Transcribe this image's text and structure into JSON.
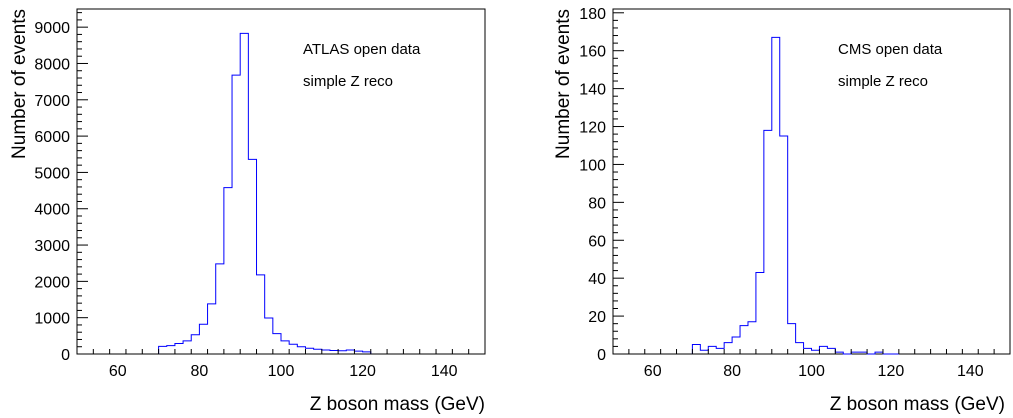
{
  "colors": {
    "histogram": "#0000ff",
    "axes": "#000000",
    "background": "#ffffff"
  },
  "chart_data": [
    {
      "type": "histogram",
      "xlabel": "Z boson mass (GeV)",
      "ylabel": "Number of events",
      "annotations": [
        "ATLAS open data",
        "simple Z reco"
      ],
      "xlim": [
        50,
        150
      ],
      "ylim": [
        0,
        9500
      ],
      "xticks": [
        60,
        80,
        100,
        120,
        140
      ],
      "yticks": [
        0,
        1000,
        2000,
        3000,
        4000,
        5000,
        6000,
        7000,
        8000,
        9000
      ],
      "ytick_labels": [
        "0",
        "1000",
        "2000",
        "3000",
        "4000",
        "5000",
        "6000",
        "7000",
        "8000",
        "9000"
      ],
      "bin_width": 2,
      "bin_edges_start": 70,
      "values": [
        210,
        230,
        290,
        360,
        530,
        820,
        1380,
        2480,
        4580,
        7680,
        8830,
        5360,
        2180,
        990,
        560,
        360,
        270,
        200,
        160,
        130,
        110,
        95,
        90,
        110,
        80,
        60
      ],
      "grid": false,
      "legend": "none"
    },
    {
      "type": "histogram",
      "xlabel": "Z boson mass (GeV)",
      "ylabel": "Number of events",
      "annotations": [
        "CMS open data",
        "simple Z reco"
      ],
      "xlim": [
        50,
        150
      ],
      "ylim": [
        0,
        182
      ],
      "xticks": [
        60,
        80,
        100,
        120,
        140
      ],
      "yticks": [
        0,
        20,
        40,
        60,
        80,
        100,
        120,
        140,
        160,
        180
      ],
      "ytick_labels": [
        "0",
        "20",
        "40",
        "60",
        "80",
        "100",
        "120",
        "140",
        "160",
        "180"
      ],
      "bin_width": 2,
      "bin_edges_start": 70,
      "values": [
        5,
        2,
        4,
        3,
        6,
        9,
        15,
        17,
        43,
        118,
        167,
        115,
        16,
        6,
        3,
        2,
        4,
        3,
        1,
        0,
        1,
        1,
        0,
        1,
        0,
        0
      ],
      "grid": false,
      "legend": "none"
    }
  ]
}
